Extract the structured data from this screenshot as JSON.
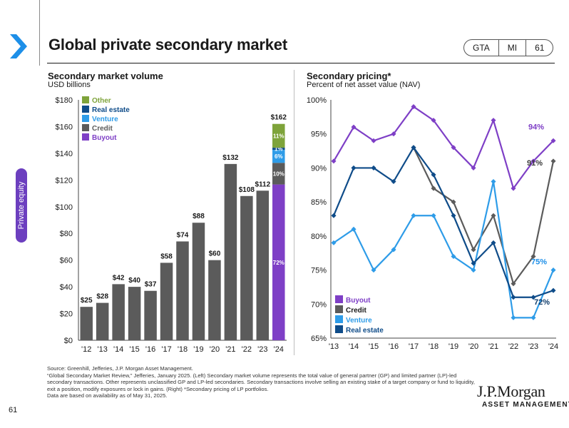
{
  "header": {
    "title": "Global private secondary market",
    "tags": [
      "GTA",
      "MI",
      "61"
    ]
  },
  "side_tab": {
    "label": "Private equity"
  },
  "left_panel": {
    "title": "Secondary market volume",
    "subtitle": "USD billions"
  },
  "right_panel": {
    "title": "Secondary pricing*",
    "subtitle": "Percent of net asset value (NAV)"
  },
  "footnotes": {
    "source": "Source: Greenhill, Jefferies, J.P. Morgan Asset Management.",
    "body": "“Global Secondary Market Review,” Jefferies, January 2025. (Left) Secondary market volume represents the total value of general partner (GP) and limited partner (LP)-led secondary transactions. Other represents unclassified GP and LP-led secondaries. Secondary transactions involve selling an existing stake of a target company or fund to liquidity, exit a position, modify exposures or lock in gains. (Right) *Secondary pricing of LP portfolios.",
    "availability": "Data are based on availability as of May 31, 2025."
  },
  "logo": {
    "name": "J.P.Morgan",
    "tagline": "ASSET MANAGEMENT"
  },
  "page_number": "61",
  "colors": {
    "accent_blue": "#1d8fe8",
    "buyout": "#7e3fc6",
    "credit": "#5b5b5b",
    "venture": "#2e9ce8",
    "real_estate": "#0f4c89",
    "other": "#7ea33a",
    "side_tab": "#6c3fbf"
  },
  "chart_data": [
    {
      "type": "bar",
      "title": "Secondary market volume",
      "subtitle": "USD billions",
      "categories": [
        "'12",
        "'13",
        "'14",
        "'15",
        "'16",
        "'17",
        "'18",
        "'19",
        "'20",
        "'21",
        "'22",
        "'23",
        "'24"
      ],
      "values": [
        25,
        28,
        42,
        40,
        37,
        58,
        74,
        88,
        60,
        132,
        108,
        112,
        162
      ],
      "value_labels": [
        "$25",
        "$28",
        "$42",
        "$40",
        "$37",
        "$58",
        "$74",
        "$88",
        "$60",
        "$132",
        "$108",
        "$112",
        "$162"
      ],
      "ylim": [
        0,
        180
      ],
      "yticks": [
        0,
        20,
        40,
        60,
        80,
        100,
        120,
        140,
        160,
        180
      ],
      "ytick_labels": [
        "$0",
        "$20",
        "$40",
        "$60",
        "$80",
        "$100",
        "$120",
        "$140",
        "$160",
        "$180"
      ],
      "grid": false,
      "legend_position": "top-left",
      "legend": [
        {
          "name": "Other",
          "color": "#7ea33a"
        },
        {
          "name": "Real estate",
          "color": "#0f4c89"
        },
        {
          "name": "Venture",
          "color": "#2e9ce8"
        },
        {
          "name": "Credit",
          "color": "#5b5b5b"
        },
        {
          "name": "Buyout",
          "color": "#7e3fc6"
        }
      ],
      "stacked_last_bar": {
        "category": "'24",
        "segments": [
          {
            "name": "Buyout",
            "pct": 72,
            "label": "72%",
            "color": "#7e3fc6"
          },
          {
            "name": "Credit",
            "pct": 10,
            "label": "10%",
            "color": "#5b5b5b"
          },
          {
            "name": "Venture",
            "pct": 6,
            "label": "6%",
            "color": "#2e9ce8"
          },
          {
            "name": "Real estate",
            "pct": 1,
            "label": "1%",
            "color": "#0f4c89"
          },
          {
            "name": "Other",
            "pct": 11,
            "label": "11%",
            "color": "#7ea33a"
          }
        ]
      }
    },
    {
      "type": "line",
      "title": "Secondary pricing*",
      "subtitle": "Percent of net asset value (NAV)",
      "x": [
        "'13",
        "'14",
        "'15",
        "'16",
        "'17",
        "'18",
        "'19",
        "'20",
        "'21",
        "'22",
        "'23",
        "'24"
      ],
      "ylim": [
        65,
        100
      ],
      "yticks": [
        65,
        70,
        75,
        80,
        85,
        90,
        95,
        100
      ],
      "ytick_labels": [
        "65%",
        "70%",
        "75%",
        "80%",
        "85%",
        "90%",
        "95%",
        "100%"
      ],
      "grid": false,
      "legend_position": "bottom-left",
      "series": [
        {
          "name": "Buyout",
          "color": "#7e3fc6",
          "values": [
            91,
            96,
            94,
            95,
            99,
            97,
            93,
            90,
            97,
            87,
            91,
            94
          ],
          "end_label": "94%"
        },
        {
          "name": "Credit",
          "color": "#5b5b5b",
          "values": [
            null,
            null,
            null,
            null,
            93,
            87,
            85,
            78,
            83,
            73,
            77,
            91
          ],
          "end_label": "91%"
        },
        {
          "name": "Venture",
          "color": "#2e9ce8",
          "values": [
            79,
            81,
            75,
            78,
            83,
            83,
            77,
            75,
            88,
            68,
            68,
            75
          ],
          "end_label": "75%"
        },
        {
          "name": "Real estate",
          "color": "#0f4c89",
          "values": [
            83,
            90,
            90,
            88,
            93,
            89,
            83,
            76,
            79,
            71,
            71,
            72
          ],
          "end_label": "72%"
        }
      ]
    }
  ]
}
